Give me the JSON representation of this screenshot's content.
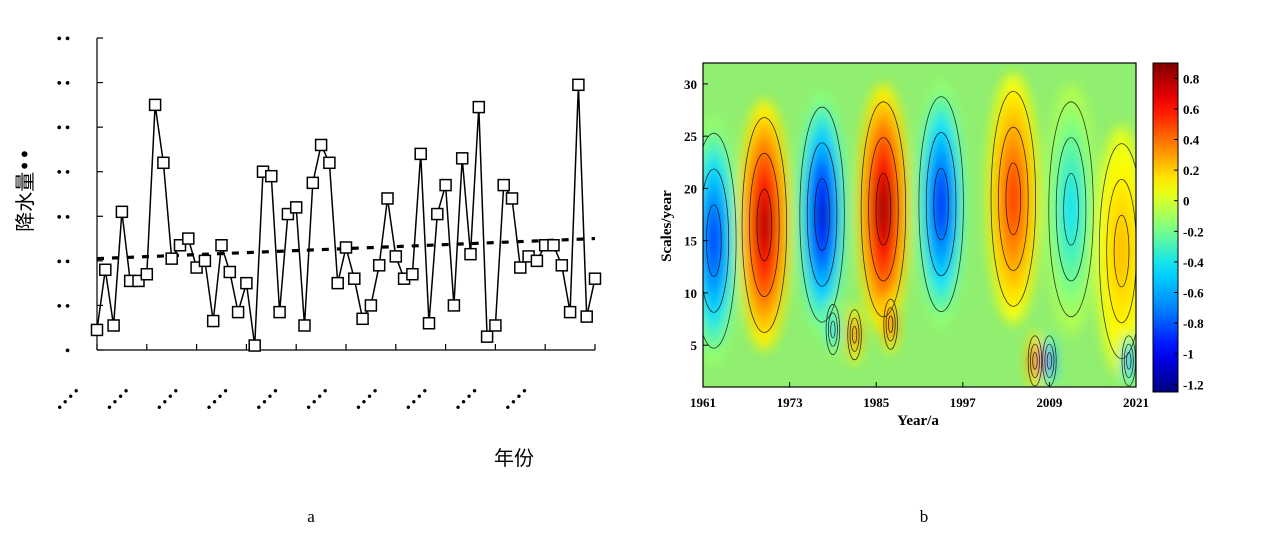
{
  "chart_data": [
    {
      "type": "line",
      "panel_label": "a",
      "xlabel": "年份",
      "ylabel": "降水量••",
      "y_tick_labels": [
        "•",
        "• •",
        "• •",
        "• •",
        "• •",
        "• •",
        "• •",
        "• •"
      ],
      "x_tick_labels": [
        "• • • •",
        "• • • •",
        "• • • •",
        "• • • •",
        "• • • •",
        "• • • •",
        "• • • •",
        "• • • •",
        "• • • •",
        "• • • •"
      ],
      "ylim": [
        0,
        7
      ],
      "grid": false,
      "series": [
        {
          "style": "solid-line-square-markers",
          "x": [
            1961,
            1962,
            1963,
            1964,
            1965,
            1966,
            1967,
            1968,
            1969,
            1970,
            1971,
            1972,
            1973,
            1974,
            1975,
            1976,
            1977,
            1978,
            1979,
            1980,
            1981,
            1982,
            1983,
            1984,
            1985,
            1986,
            1987,
            1988,
            1989,
            1990,
            1991,
            1992,
            1993,
            1994,
            1995,
            1996,
            1997,
            1998,
            1999,
            2000,
            2001,
            2002,
            2003,
            2004,
            2005,
            2006,
            2007,
            2008,
            2009,
            2010,
            2011,
            2012,
            2013,
            2014,
            2015,
            2016,
            2017,
            2018,
            2019,
            2020,
            2021
          ],
          "values": [
            0.45,
            1.8,
            0.55,
            3.1,
            1.55,
            1.55,
            1.7,
            5.5,
            4.2,
            2.05,
            2.35,
            2.5,
            1.85,
            2.0,
            0.65,
            2.35,
            1.75,
            0.85,
            1.5,
            0.1,
            4.0,
            3.9,
            0.85,
            3.05,
            3.2,
            0.55,
            3.75,
            4.6,
            4.2,
            1.5,
            2.3,
            1.6,
            0.7,
            1.0,
            1.9,
            3.4,
            2.1,
            1.6,
            1.7,
            4.4,
            0.6,
            3.05,
            3.7,
            1.0,
            4.3,
            2.15,
            5.45,
            0.3,
            0.55,
            3.7,
            3.4,
            1.85,
            2.1,
            2.0,
            2.35,
            2.35,
            1.9,
            0.85,
            5.95,
            0.75,
            1.6
          ]
        },
        {
          "style": "dashed-trend",
          "x": [
            1961,
            2021
          ],
          "values": [
            2.05,
            2.5
          ]
        }
      ]
    },
    {
      "type": "heatmap",
      "panel_label": "b",
      "xlabel": "Year/a",
      "ylabel": "Scales/year",
      "x_ticks": [
        1961,
        1973,
        1985,
        1997,
        2009,
        2021
      ],
      "y_ticks": [
        5,
        10,
        15,
        20,
        25,
        30
      ],
      "xlim": [
        1961,
        2021
      ],
      "ylim": [
        1,
        32
      ],
      "colorbar_ticks": [
        0.8,
        0.6,
        0.4,
        0.2,
        0,
        -0.2,
        -0.4,
        -0.6,
        -0.8,
        -1,
        -1.2
      ],
      "colorbar_range": [
        -1.25,
        0.9
      ],
      "colormap": [
        "#00007f",
        "#0000ff",
        "#0080ff",
        "#00e0ff",
        "#80ff80",
        "#ffff00",
        "#ff8000",
        "#ff0000",
        "#7f0000"
      ],
      "background_color": "#90ee70",
      "centers": [
        {
          "year": 1962.5,
          "scale": 15,
          "value": -0.95
        },
        {
          "year": 1969.5,
          "scale": 16.5,
          "value": 0.85
        },
        {
          "year": 1977.5,
          "scale": 17.5,
          "value": -1.15
        },
        {
          "year": 1986,
          "scale": 18,
          "value": 0.9
        },
        {
          "year": 1994,
          "scale": 18.5,
          "value": -1.0
        },
        {
          "year": 2004,
          "scale": 19,
          "value": 0.55
        },
        {
          "year": 2012,
          "scale": 18,
          "value": -0.45
        },
        {
          "year": 2019,
          "scale": 14,
          "value": 0.25
        },
        {
          "year": 1987,
          "scale": 7,
          "value": 0.6
        },
        {
          "year": 1982,
          "scale": 6,
          "value": 0.5
        },
        {
          "year": 1979,
          "scale": 6.5,
          "value": -0.6
        },
        {
          "year": 2009,
          "scale": 3.5,
          "value": -1.0
        },
        {
          "year": 2007,
          "scale": 3.5,
          "value": 0.6
        },
        {
          "year": 2020,
          "scale": 3.5,
          "value": -0.8
        }
      ]
    }
  ]
}
